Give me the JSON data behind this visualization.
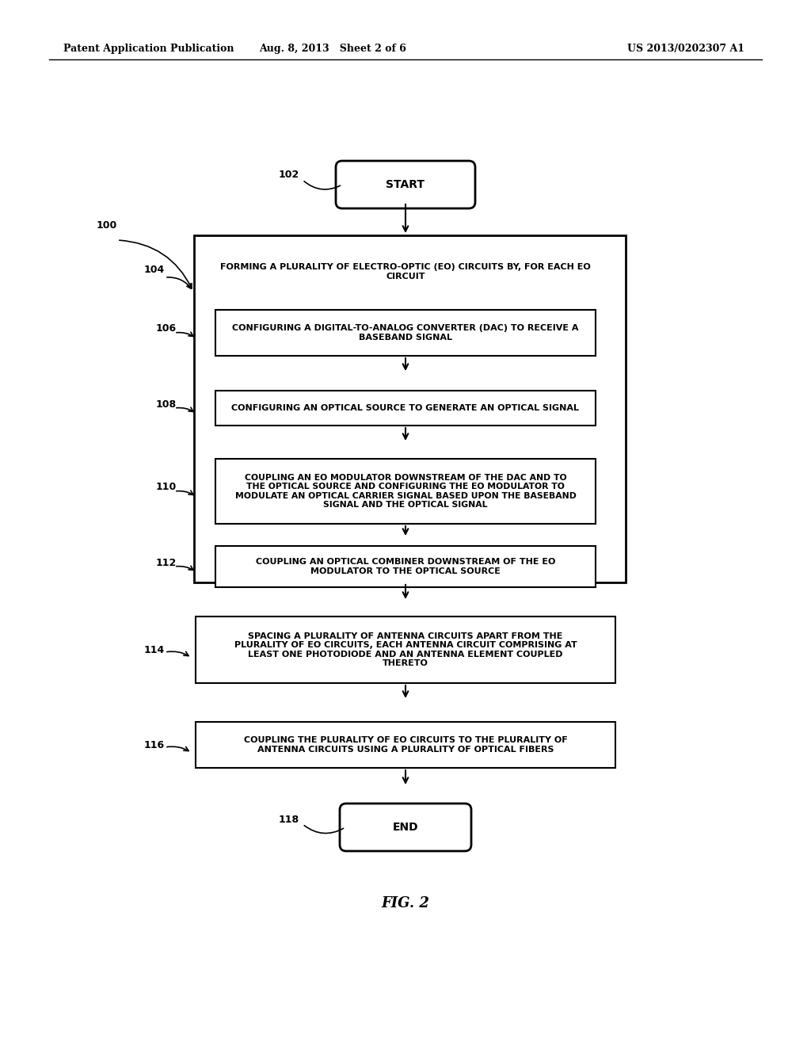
{
  "header_left": "Patent Application Publication",
  "header_mid": "Aug. 8, 2013   Sheet 2 of 6",
  "header_right": "US 2013/0202307 A1",
  "fig_label": "FIG. 2",
  "background_color": "#ffffff",
  "start_label": "START",
  "end_label": "END",
  "box104_text": "FORMING A PLURALITY OF ELECTRO-OPTIC (EO) CIRCUITS BY, FOR EACH EO\nCIRCUIT",
  "box106_text": "CONFIGURING A DIGITAL-TO-ANALOG CONVERTER (DAC) TO RECEIVE A\nBASEBAND SIGNAL",
  "box108_text": "CONFIGURING AN OPTICAL SOURCE TO GENERATE AN OPTICAL SIGNAL",
  "box110_text": "COUPLING AN EO MODULATOR DOWNSTREAM OF THE DAC AND TO\nTHE OPTICAL SOURCE AND CONFIGURING THE EO MODULATOR TO\nMODULATE AN OPTICAL CARRIER SIGNAL BASED UPON THE BASEBAND\nSIGNAL AND THE OPTICAL SIGNAL",
  "box112_text": "COUPLING AN OPTICAL COMBINER DOWNSTREAM OF THE EO\nMODULATOR TO THE OPTICAL SOURCE",
  "box114_text": "SPACING A PLURALITY OF ANTENNA CIRCUITS APART FROM THE\nPLURALITY OF EO CIRCUITS, EACH ANTENNA CIRCUIT COMPRISING AT\nLEAST ONE PHOTODIODE AND AN ANTENNA ELEMENT COUPLED\nTHERETO",
  "box116_text": "COUPLING THE PLURALITY OF EO CIRCUITS TO THE PLURALITY OF\nANTENNA CIRCUITS USING A PLURALITY OF OPTICAL FIBERS"
}
